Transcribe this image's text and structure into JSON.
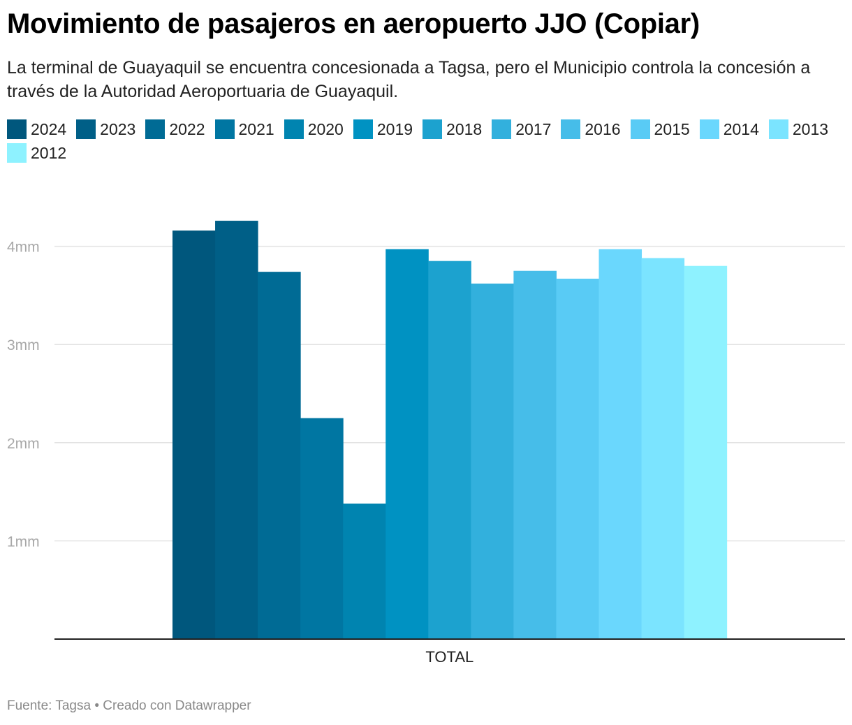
{
  "header": {
    "title": "Movimiento de pasajeros en aeropuerto JJO (Copiar)",
    "subtitle": "La terminal de Guayaquil se encuentra concesionada a Tagsa, pero el Municipio controla la concesión a través de la Autoridad Aeroportuaria de Guayaquil."
  },
  "footer": {
    "text": "Fuente: Tagsa • Creado con Datawrapper"
  },
  "chart_data": {
    "type": "bar",
    "title": "Movimiento de pasajeros en aeropuerto JJO (Copiar)",
    "categories": [
      "TOTAL"
    ],
    "xlabel": "",
    "ylabel": "",
    "ylim": [
      0,
      4.4
    ],
    "yticks": [
      {
        "value": 1,
        "label": "1mm"
      },
      {
        "value": 2,
        "label": "2mm"
      },
      {
        "value": 3,
        "label": "3mm"
      },
      {
        "value": 4,
        "label": "4mm"
      }
    ],
    "grid": true,
    "legend_position": "top",
    "series": [
      {
        "name": "2024",
        "color": "#00577d",
        "values": [
          4.16
        ]
      },
      {
        "name": "2023",
        "color": "#005f87",
        "values": [
          4.26
        ]
      },
      {
        "name": "2022",
        "color": "#006b95",
        "values": [
          3.74
        ]
      },
      {
        "name": "2021",
        "color": "#0076a2",
        "values": [
          2.25
        ]
      },
      {
        "name": "2020",
        "color": "#0084b0",
        "values": [
          1.38
        ]
      },
      {
        "name": "2019",
        "color": "#0092c2",
        "values": [
          3.97
        ]
      },
      {
        "name": "2018",
        "color": "#1ca2cf",
        "values": [
          3.85
        ]
      },
      {
        "name": "2017",
        "color": "#32b0dd",
        "values": [
          3.62
        ]
      },
      {
        "name": "2016",
        "color": "#46bde9",
        "values": [
          3.75
        ]
      },
      {
        "name": "2015",
        "color": "#59cbf5",
        "values": [
          3.67
        ]
      },
      {
        "name": "2014",
        "color": "#6ad7fd",
        "values": [
          3.97
        ]
      },
      {
        "name": "2013",
        "color": "#7be4ff",
        "values": [
          3.88
        ]
      },
      {
        "name": "2012",
        "color": "#8ef2ff",
        "values": [
          3.8
        ]
      }
    ]
  }
}
